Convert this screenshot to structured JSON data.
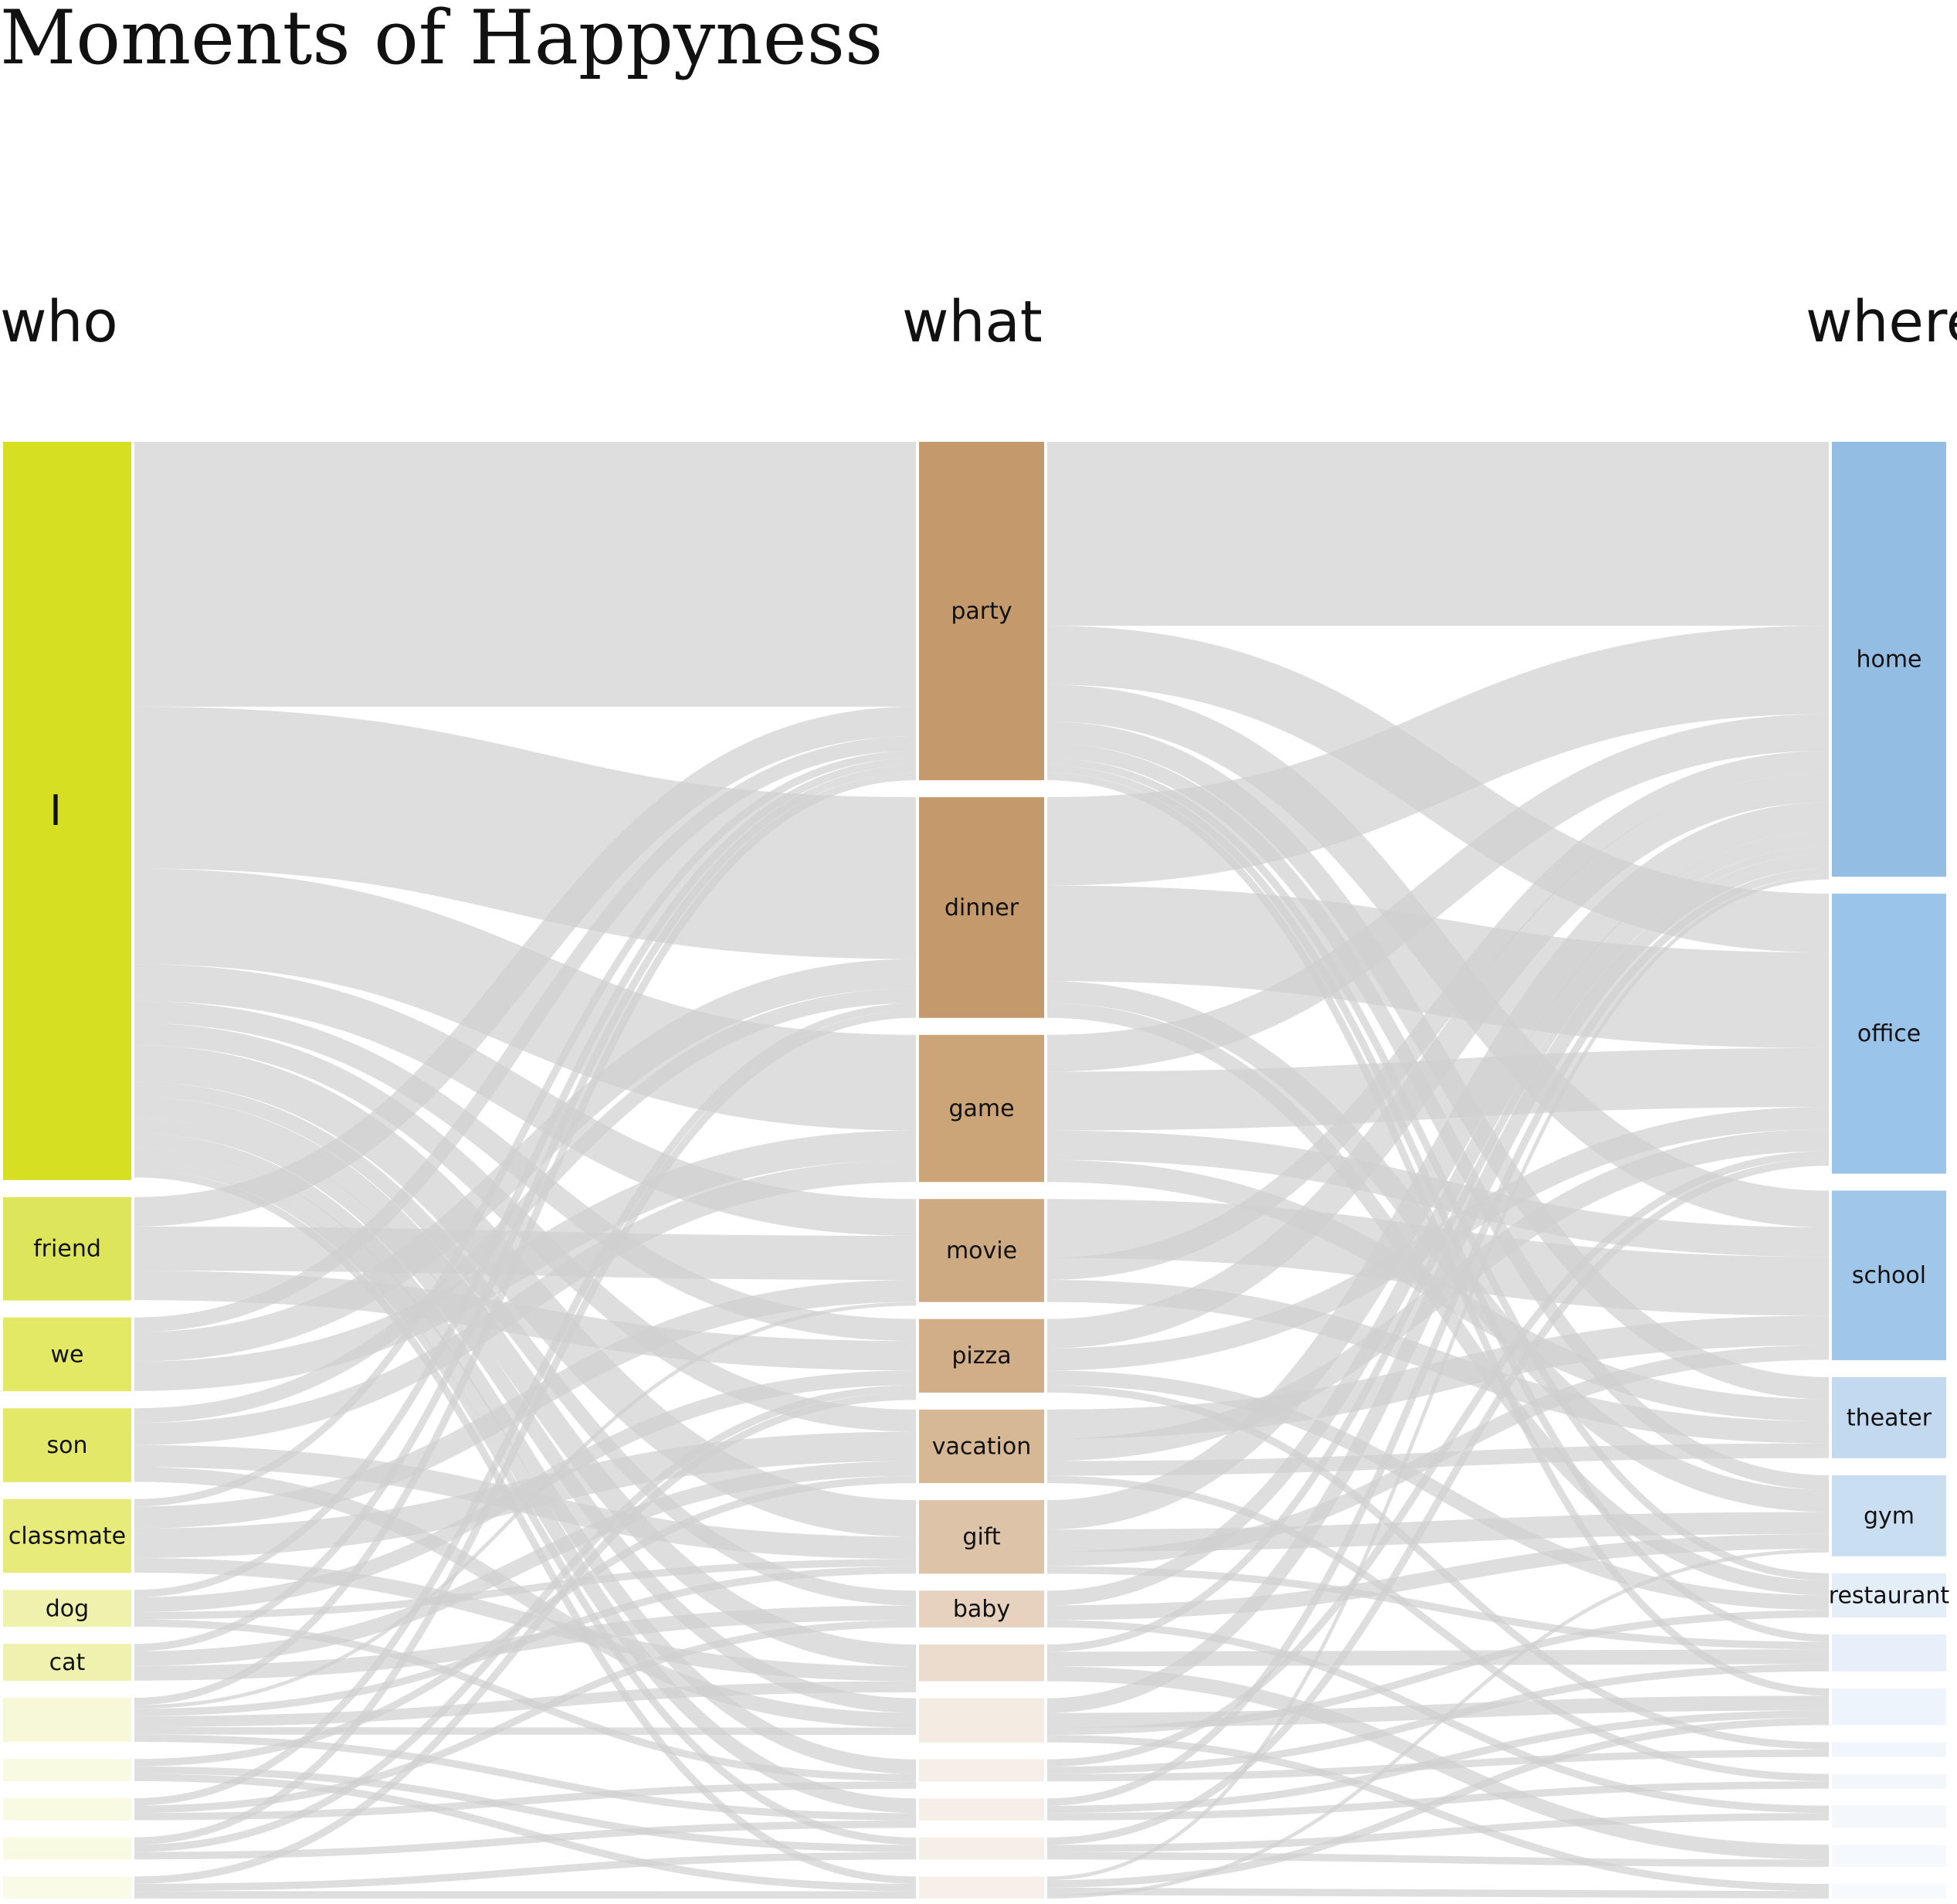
{
  "title": "Moments of Happyness",
  "columns": [
    "who",
    "what",
    "where"
  ],
  "colors": {
    "who": [
      "#d7df23",
      "#dde65a",
      "#e3e865",
      "#e3e868",
      "#e6eb7a",
      "#eef2ad",
      "#eef2ae",
      "#f6f8d8",
      "#f8fae2",
      "#f8fae2",
      "#f8fae2",
      "#f9fbe6"
    ],
    "what": [
      "#c4996b",
      "#c4996b",
      "#cba478",
      "#ceaa82",
      "#d1ad88",
      "#d6b895",
      "#ddc3a8",
      "#e6d2bf",
      "#ecdccd",
      "#f4ebe2",
      "#f6efe8",
      "#f6efe8",
      "#f6efe8",
      "#f7f0e9"
    ],
    "where": [
      "#94bde3",
      "#9bc4ea",
      "#a0c6ea",
      "#c2d9f0",
      "#cadef2",
      "#e4eef9",
      "#e6effa",
      "#eef4fb",
      "#f1f6fc",
      "#f3f7fc",
      "#f4f8fc",
      "#f5f9fd",
      "#f6f9fd"
    ],
    "link": "#d0d0d0"
  },
  "who_nodes": [
    {
      "label": "I",
      "value": 100
    },
    {
      "label": "friend",
      "value": 14
    },
    {
      "label": "we",
      "value": 10
    },
    {
      "label": "son",
      "value": 10
    },
    {
      "label": "classmate",
      "value": 10
    },
    {
      "label": "dog",
      "value": 5
    },
    {
      "label": "cat",
      "value": 5
    },
    {
      "label": "",
      "value": 6
    },
    {
      "label": "",
      "value": 3
    },
    {
      "label": "",
      "value": 3
    },
    {
      "label": "",
      "value": 3
    },
    {
      "label": "",
      "value": 3
    }
  ],
  "what_nodes": [
    {
      "label": "party",
      "value": 46
    },
    {
      "label": "dinner",
      "value": 30
    },
    {
      "label": "game",
      "value": 20
    },
    {
      "label": "movie",
      "value": 14
    },
    {
      "label": "pizza",
      "value": 10
    },
    {
      "label": "vacation",
      "value": 10
    },
    {
      "label": "gift",
      "value": 10
    },
    {
      "label": "baby",
      "value": 5
    },
    {
      "label": "",
      "value": 5
    },
    {
      "label": "",
      "value": 6
    },
    {
      "label": "",
      "value": 3
    },
    {
      "label": "",
      "value": 3
    },
    {
      "label": "",
      "value": 3
    },
    {
      "label": "",
      "value": 3
    }
  ],
  "where_nodes": [
    {
      "label": "home",
      "value": 59
    },
    {
      "label": "office",
      "value": 38
    },
    {
      "label": "school",
      "value": 23
    },
    {
      "label": "theater",
      "value": 11
    },
    {
      "label": "gym",
      "value": 11
    },
    {
      "label": "restaurant",
      "value": 6
    },
    {
      "label": "",
      "value": 5
    },
    {
      "label": "",
      "value": 5
    },
    {
      "label": "",
      "value": 2
    },
    {
      "label": "",
      "value": 2
    },
    {
      "label": "",
      "value": 3
    },
    {
      "label": "",
      "value": 3
    },
    {
      "label": "",
      "value": 2
    }
  ],
  "links_who_what": [
    [
      0,
      0,
      36
    ],
    [
      0,
      1,
      22
    ],
    [
      0,
      2,
      13
    ],
    [
      0,
      3,
      5
    ],
    [
      0,
      4,
      3
    ],
    [
      0,
      5,
      3
    ],
    [
      0,
      6,
      5
    ],
    [
      0,
      7,
      2
    ],
    [
      0,
      8,
      3
    ],
    [
      0,
      9,
      2
    ],
    [
      0,
      10,
      2
    ],
    [
      0,
      11,
      2
    ],
    [
      0,
      12,
      1
    ],
    [
      0,
      13,
      1
    ],
    [
      1,
      0,
      4
    ],
    [
      1,
      3,
      6
    ],
    [
      1,
      4,
      4
    ],
    [
      2,
      0,
      2
    ],
    [
      2,
      1,
      4
    ],
    [
      2,
      2,
      4
    ],
    [
      3,
      1,
      2
    ],
    [
      3,
      2,
      3
    ],
    [
      3,
      6,
      3
    ],
    [
      3,
      9,
      2
    ],
    [
      4,
      0,
      1
    ],
    [
      4,
      3,
      3
    ],
    [
      4,
      5,
      4
    ],
    [
      4,
      8,
      2
    ],
    [
      5,
      0,
      1
    ],
    [
      5,
      4,
      2
    ],
    [
      5,
      6,
      1
    ],
    [
      5,
      10,
      1
    ],
    [
      6,
      0,
      1
    ],
    [
      6,
      5,
      2
    ],
    [
      6,
      7,
      2
    ],
    [
      7,
      0,
      1
    ],
    [
      7,
      3,
      0.5
    ],
    [
      7,
      6,
      1
    ],
    [
      7,
      8,
      1.5
    ],
    [
      7,
      9,
      1
    ],
    [
      7,
      11,
      1
    ],
    [
      8,
      5,
      1
    ],
    [
      8,
      12,
      1
    ],
    [
      8,
      13,
      1
    ],
    [
      9,
      1,
      1
    ],
    [
      9,
      7,
      1
    ],
    [
      9,
      10,
      1
    ],
    [
      10,
      1,
      1
    ],
    [
      10,
      4,
      1
    ],
    [
      10,
      11,
      1
    ],
    [
      11,
      4,
      1
    ],
    [
      11,
      12,
      1
    ],
    [
      11,
      13,
      1
    ]
  ],
  "links_what_where": [
    [
      0,
      0,
      25
    ],
    [
      0,
      1,
      8
    ],
    [
      0,
      2,
      5
    ],
    [
      0,
      3,
      3
    ],
    [
      0,
      4,
      2
    ],
    [
      0,
      5,
      1
    ],
    [
      0,
      6,
      1
    ],
    [
      0,
      7,
      1
    ],
    [
      1,
      0,
      12
    ],
    [
      1,
      1,
      13
    ],
    [
      1,
      4,
      3
    ],
    [
      1,
      5,
      2
    ],
    [
      2,
      0,
      5
    ],
    [
      2,
      1,
      8
    ],
    [
      2,
      2,
      4
    ],
    [
      2,
      3,
      3
    ],
    [
      3,
      2,
      8
    ],
    [
      3,
      0,
      3
    ],
    [
      3,
      3,
      3
    ],
    [
      4,
      0,
      4
    ],
    [
      4,
      1,
      3
    ],
    [
      4,
      5,
      2
    ],
    [
      4,
      8,
      1
    ],
    [
      5,
      2,
      4
    ],
    [
      5,
      1,
      3
    ],
    [
      5,
      3,
      2
    ],
    [
      5,
      9,
      1
    ],
    [
      6,
      0,
      4
    ],
    [
      6,
      4,
      3
    ],
    [
      6,
      2,
      2
    ],
    [
      6,
      6,
      1
    ],
    [
      7,
      0,
      2
    ],
    [
      7,
      4,
      2
    ],
    [
      7,
      10,
      1
    ],
    [
      8,
      0,
      1
    ],
    [
      8,
      6,
      2
    ],
    [
      8,
      11,
      2
    ],
    [
      9,
      0,
      2
    ],
    [
      9,
      7,
      2
    ],
    [
      9,
      5,
      1
    ],
    [
      9,
      12,
      1
    ],
    [
      10,
      1,
      1
    ],
    [
      10,
      6,
      1
    ],
    [
      10,
      8,
      1
    ],
    [
      11,
      0,
      1
    ],
    [
      11,
      7,
      1
    ],
    [
      11,
      9,
      1
    ],
    [
      12,
      1,
      1
    ],
    [
      12,
      10,
      1
    ],
    [
      12,
      11,
      1
    ],
    [
      13,
      0,
      0.5
    ],
    [
      13,
      7,
      1
    ],
    [
      13,
      12,
      1
    ],
    [
      13,
      4,
      0.5
    ]
  ]
}
